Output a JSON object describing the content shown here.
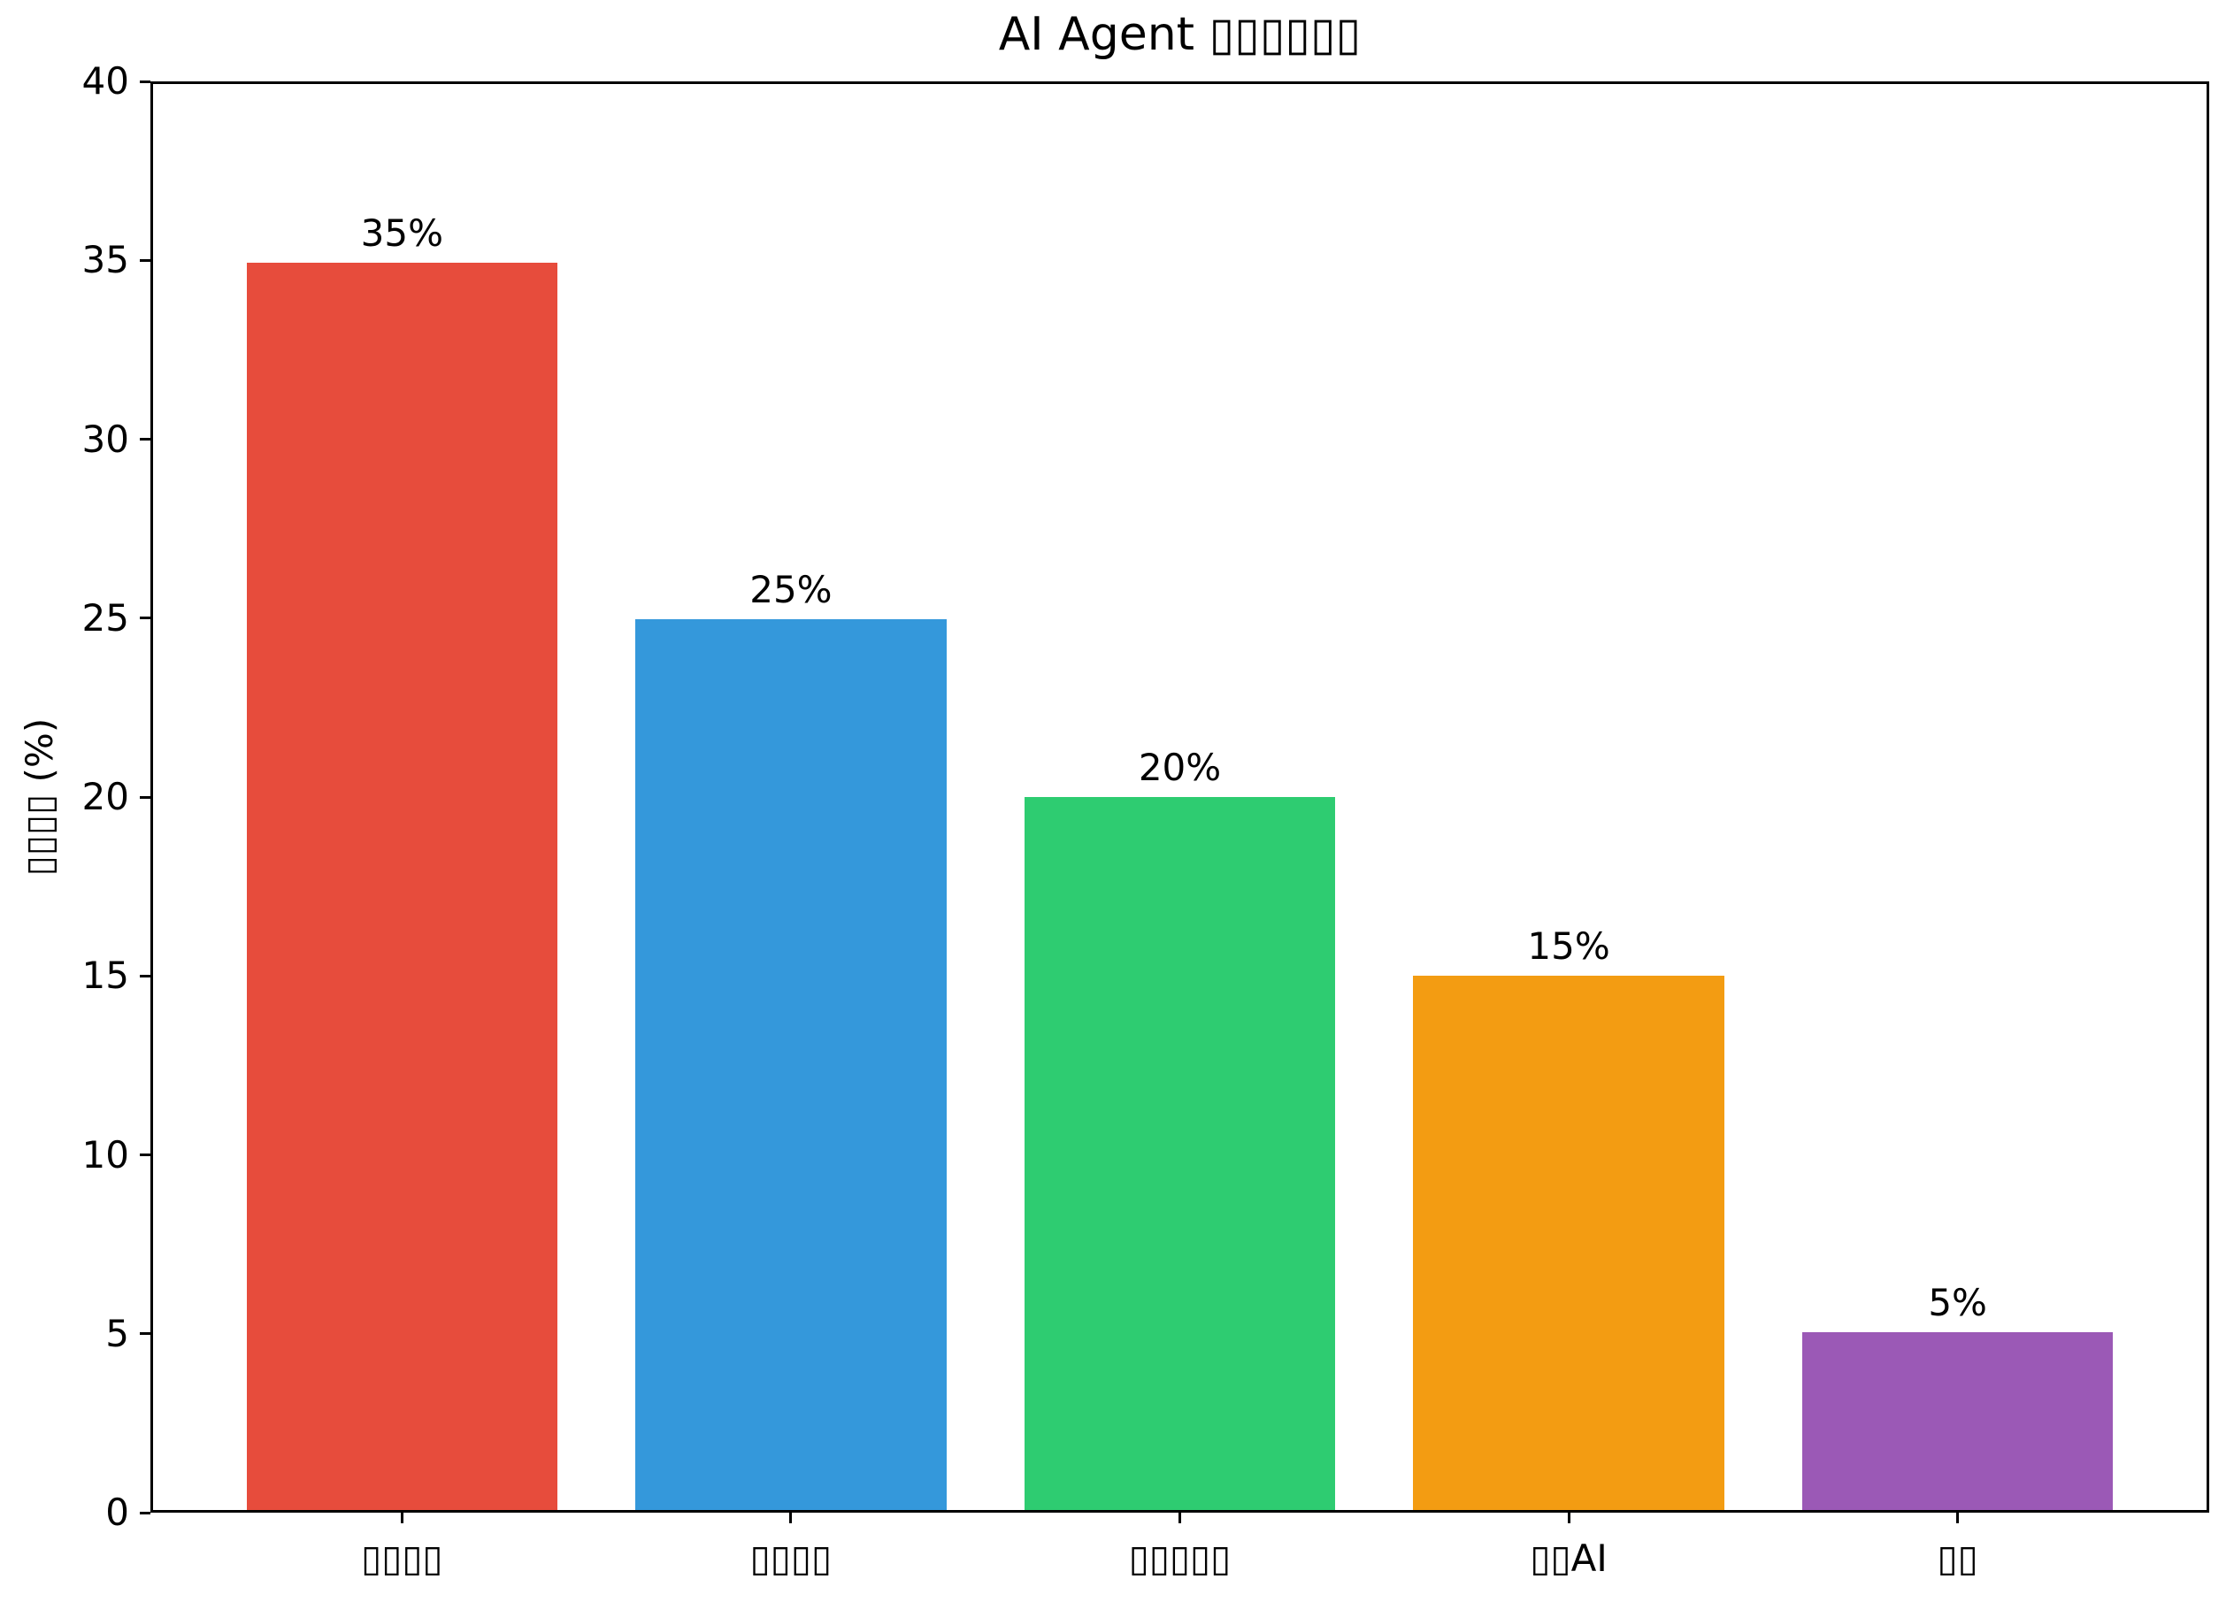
{
  "chart_data": {
    "type": "bar",
    "title": "AI Agent ▯▯▯▯▯▯",
    "ylabel": "▯▯▯▯ (%)",
    "xlabel": "",
    "categories": [
      "▯▯▯▯",
      "▯▯▯▯",
      "▯▯▯▯▯",
      "▯▯AI",
      "▯▯"
    ],
    "values": [
      35,
      25,
      20,
      15,
      5
    ],
    "bar_labels": [
      "35%",
      "25%",
      "20%",
      "15%",
      "5%"
    ],
    "colors": [
      "#e74c3c",
      "#3498db",
      "#2ecc71",
      "#f39c12",
      "#9b59b6"
    ],
    "ylim": [
      0,
      40
    ],
    "yticks": [
      0,
      5,
      10,
      15,
      20,
      25,
      30,
      35,
      40
    ],
    "grid": false,
    "legend": false,
    "axis_color": "#000000",
    "background_color": "#ffffff"
  }
}
